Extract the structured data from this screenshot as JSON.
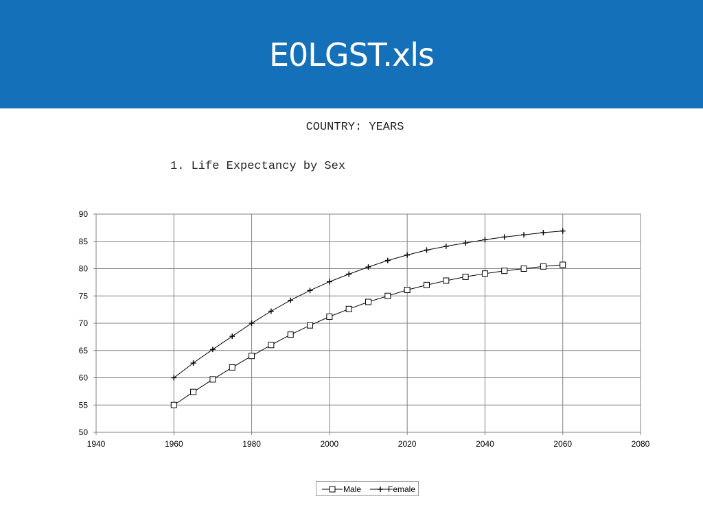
{
  "header": {
    "title": "E0LGST.xls"
  },
  "subtitle": "COUNTRY: YEARS",
  "chart_title": "1. Life Expectancy by Sex",
  "colors": {
    "banner": "#1470b9",
    "line": "#000000",
    "grid": "#808080"
  },
  "chart_data": {
    "type": "line",
    "title": "1. Life Expectancy by Sex",
    "xlabel": "",
    "ylabel": "",
    "xlim": [
      1940,
      2080
    ],
    "ylim": [
      50,
      90
    ],
    "x_ticks": [
      1940,
      1960,
      1980,
      2000,
      2020,
      2040,
      2060,
      2080
    ],
    "y_ticks": [
      50,
      55,
      60,
      65,
      70,
      75,
      80,
      85,
      90
    ],
    "grid": true,
    "legend_position": "bottom",
    "x": [
      1960,
      1965,
      1970,
      1975,
      1980,
      1985,
      1990,
      1995,
      2000,
      2005,
      2010,
      2015,
      2020,
      2025,
      2030,
      2035,
      2040,
      2045,
      2050,
      2055,
      2060
    ],
    "series": [
      {
        "name": "Male",
        "marker": "square",
        "values": [
          55.0,
          57.4,
          59.7,
          61.9,
          64.0,
          66.0,
          67.9,
          69.6,
          71.2,
          72.6,
          73.9,
          75.0,
          76.1,
          77.0,
          77.8,
          78.5,
          79.1,
          79.6,
          80.0,
          80.4,
          80.7
        ]
      },
      {
        "name": "Female",
        "marker": "plus",
        "values": [
          60.0,
          62.7,
          65.2,
          67.6,
          70.0,
          72.2,
          74.2,
          76.0,
          77.6,
          79.0,
          80.3,
          81.5,
          82.5,
          83.4,
          84.1,
          84.7,
          85.3,
          85.8,
          86.2,
          86.6,
          86.9
        ]
      }
    ]
  }
}
